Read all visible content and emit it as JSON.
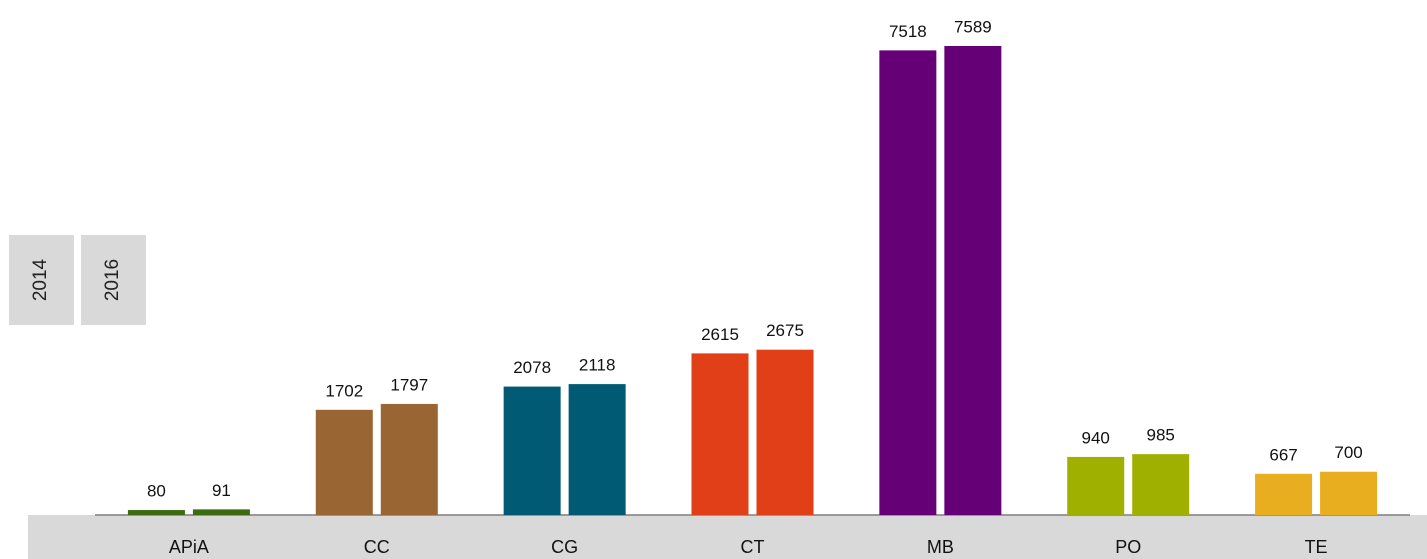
{
  "chart_data": {
    "type": "bar",
    "categories": [
      "APiA",
      "CC",
      "CG",
      "CT",
      "MB",
      "PO",
      "TE"
    ],
    "colors": [
      "#3d6b0f",
      "#996633",
      "#005a73",
      "#e03f17",
      "#660077",
      "#a0b000",
      "#e8ae1f"
    ],
    "series": [
      {
        "name": "2014",
        "values": [
          80,
          1702,
          2078,
          2615,
          7518,
          940,
          667
        ]
      },
      {
        "name": "2016",
        "values": [
          91,
          1797,
          2118,
          2675,
          7589,
          985,
          700
        ]
      }
    ]
  }
}
